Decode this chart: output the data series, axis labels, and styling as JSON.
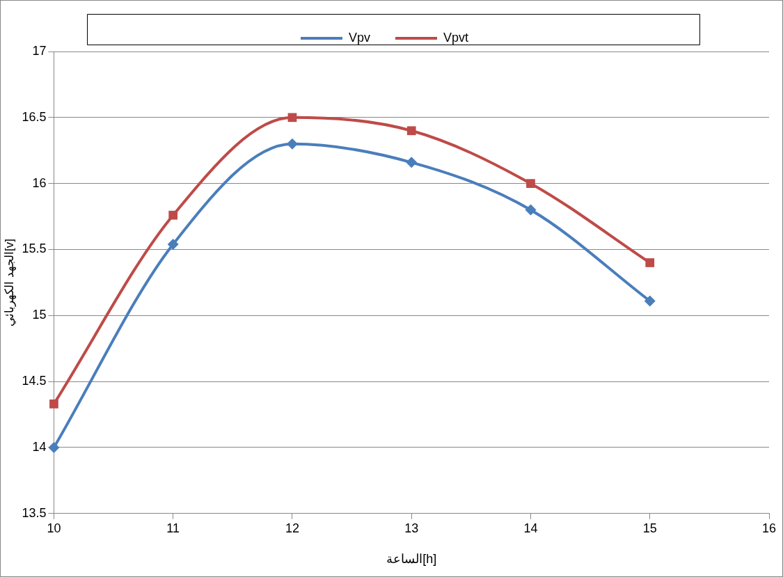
{
  "chart_data": {
    "type": "line",
    "xlabel": "الساعة[h]",
    "ylabel": "الجهد الكهربائي[v]",
    "x": [
      10,
      11,
      12,
      13,
      14,
      15
    ],
    "xlim": [
      10,
      16
    ],
    "xticks": [
      10,
      11,
      12,
      13,
      14,
      15,
      16
    ],
    "ylim": [
      13.5,
      17
    ],
    "yticks": [
      13.5,
      14,
      14.5,
      15,
      15.5,
      16,
      16.5,
      17
    ],
    "grid": "y",
    "legend": "top",
    "series": [
      {
        "name": "Vpv",
        "color": "#4a7ebb",
        "marker": "diamond",
        "values": [
          14.0,
          15.54,
          16.3,
          16.16,
          15.8,
          15.11
        ]
      },
      {
        "name": "Vpvt",
        "color": "#be4b48",
        "marker": "square",
        "values": [
          14.33,
          15.76,
          16.5,
          16.4,
          16.0,
          15.4
        ]
      }
    ]
  }
}
